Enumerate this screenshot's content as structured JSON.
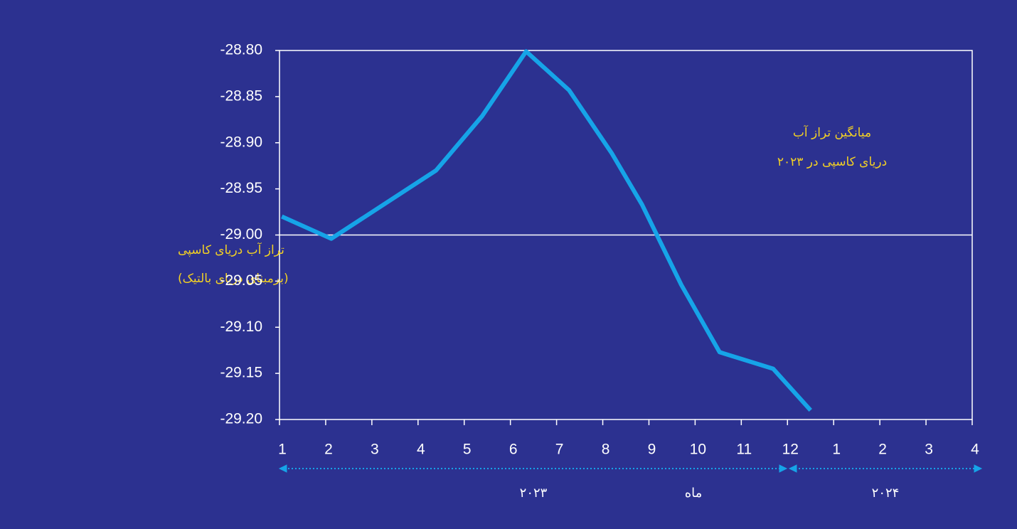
{
  "chart_data": {
    "type": "line",
    "y_label": [
      "تراز آب دریای کاسپی",
      "(برمبنای دریای بالتیک)"
    ],
    "annotation": [
      "میانگین تراز آب",
      "دریای کاسپی در ۲۰۲۳"
    ],
    "x_label": "ماه",
    "year_labels": [
      "۲۰۲۳",
      "۲۰۲۴"
    ],
    "xlim": [
      1,
      16
    ],
    "xticks": [
      1,
      2,
      3,
      4,
      5,
      6,
      7,
      8,
      9,
      10,
      11,
      12,
      {
        "value": 13,
        "label": "1"
      },
      {
        "value": 14,
        "label": "2"
      },
      {
        "value": 15,
        "label": "3"
      },
      {
        "value": 16,
        "label": "4"
      }
    ],
    "ylim": [
      -29.2,
      -28.8
    ],
    "yticks": [
      {
        "value": -28.8,
        "label": "-28.80"
      },
      {
        "value": -28.85,
        "label": "-28.85"
      },
      {
        "value": -28.9,
        "label": "-28.90"
      },
      {
        "value": -28.95,
        "label": "-28.95"
      },
      {
        "value": -29.0,
        "label": "-29.00"
      },
      {
        "value": -29.05,
        "label": "-29.05"
      },
      {
        "value": -29.1,
        "label": "-29.10"
      },
      {
        "value": -29.15,
        "label": "-29.15"
      },
      {
        "value": -29.2,
        "label": "-29.20"
      }
    ],
    "reference_line": -29.0,
    "series": [
      {
        "color": "#16a4e8",
        "x": [
          1.05,
          2.12,
          4.39,
          5.39,
          6.34,
          7.27,
          8.19,
          8.85,
          9.7,
          10.53,
          11.69,
          12.5
        ],
        "values": [
          -28.98,
          -29.004,
          -28.93,
          -28.871,
          -28.801,
          -28.843,
          -28.911,
          -28.967,
          -29.054,
          -29.127,
          -29.145,
          -29.19
        ]
      }
    ]
  }
}
